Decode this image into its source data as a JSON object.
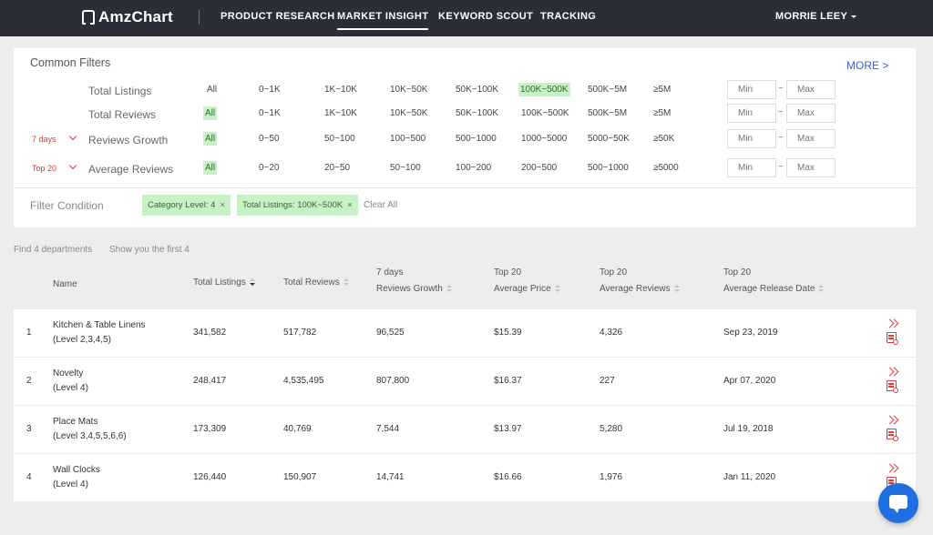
{
  "app": {
    "logo_text": "AmzChart"
  },
  "nav": {
    "items": [
      "PRODUCT RESEARCH",
      "MARKET INSIGHT",
      "KEYWORD SCOUT",
      "TRACKING"
    ],
    "active": "MARKET INSIGHT",
    "user": "MORRIE LEEY"
  },
  "filters": {
    "title": "Common Filters",
    "more": "MORE >",
    "rows": [
      {
        "prefix": "",
        "label": "Total Listings",
        "options": [
          "All",
          "0~1K",
          "1K~10K",
          "10K~50K",
          "50K~100K",
          "100K~500K",
          "500K~5M",
          "≥5M"
        ],
        "selected": "100K~500K",
        "min_placeholder": "Min",
        "max_placeholder": "Max"
      },
      {
        "prefix": "",
        "label": "Total Reviews",
        "options": [
          "All",
          "0~1K",
          "1K~10K",
          "10K~50K",
          "50K~100K",
          "100K~500K",
          "500K~5M",
          "≥5M"
        ],
        "selected": "All",
        "min_placeholder": "Min",
        "max_placeholder": "Max"
      },
      {
        "prefix": "7 days",
        "label": "Reviews Growth",
        "options": [
          "All",
          "0~50",
          "50~100",
          "100~500",
          "500~1000",
          "1000~5000",
          "5000~50K",
          "≥50K"
        ],
        "selected": "All",
        "min_placeholder": "Min",
        "max_placeholder": "Max"
      },
      {
        "prefix": "Top 20",
        "label": "Average Reviews",
        "options": [
          "All",
          "0~20",
          "20~50",
          "50~100",
          "100~200",
          "200~500",
          "500~1000",
          "≥5000"
        ],
        "selected": "All",
        "min_placeholder": "Min",
        "max_placeholder": "Max"
      }
    ],
    "condition_label": "Filter Condition",
    "tags": [
      "Category Level: 4",
      "Total Listings: 100K~500K"
    ],
    "clear_all": "Clear All"
  },
  "summary": {
    "found": "Find 4 departments",
    "shown": "Show you the first 4"
  },
  "table": {
    "headers": [
      {
        "top": "",
        "bottom": "Name",
        "sortable": false
      },
      {
        "top": "",
        "bottom": "Total Listings",
        "sortable": true,
        "sorted": "desc"
      },
      {
        "top": "",
        "bottom": "Total Reviews",
        "sortable": true
      },
      {
        "top": "7 days",
        "bottom": "Reviews Growth",
        "sortable": true
      },
      {
        "top": "Top 20",
        "bottom": "Average Price",
        "sortable": true
      },
      {
        "top": "Top 20",
        "bottom": "Average Reviews",
        "sortable": true
      },
      {
        "top": "Top 20",
        "bottom": "Average Release Date",
        "sortable": true
      }
    ],
    "rows": [
      {
        "index": "1",
        "name": "Kitchen & Table Linens",
        "level": "(Level 2,3,4,5)",
        "listings": "341,582",
        "reviews": "517,782",
        "growth": "96,525",
        "price": "$15.39",
        "avg_reviews": "4,326",
        "release": "Sep 23, 2019"
      },
      {
        "index": "2",
        "name": "Novelty",
        "level": "(Level 4)",
        "listings": "248,417",
        "reviews": "4,535,495",
        "growth": "807,800",
        "price": "$16.37",
        "avg_reviews": "227",
        "release": "Apr 07, 2020"
      },
      {
        "index": "3",
        "name": "Place Mats",
        "level": "(Level 3,4,5,5,6,6)",
        "listings": "173,309",
        "reviews": "40,769",
        "growth": "7,544",
        "price": "$13.97",
        "avg_reviews": "5,280",
        "release": "Jul 19, 2018"
      },
      {
        "index": "4",
        "name": "Wall Clocks",
        "level": "(Level 4)",
        "listings": "126,440",
        "reviews": "150,907",
        "growth": "14,741",
        "price": "$16.66",
        "avg_reviews": "1,976",
        "release": "Jan 11, 2020"
      }
    ]
  },
  "colors": {
    "nav_bg": "#2b2e38",
    "selected_bg": "#c8f1c8",
    "accent_red": "#e23a3a",
    "link_blue": "#3b5bdb",
    "chat_blue": "#1f6fe0"
  },
  "icons": {
    "logo": "amzchart-logo-icon",
    "chat": "chat-icon",
    "row_open": "chevron-double-right-icon",
    "row_report": "report-icon"
  }
}
